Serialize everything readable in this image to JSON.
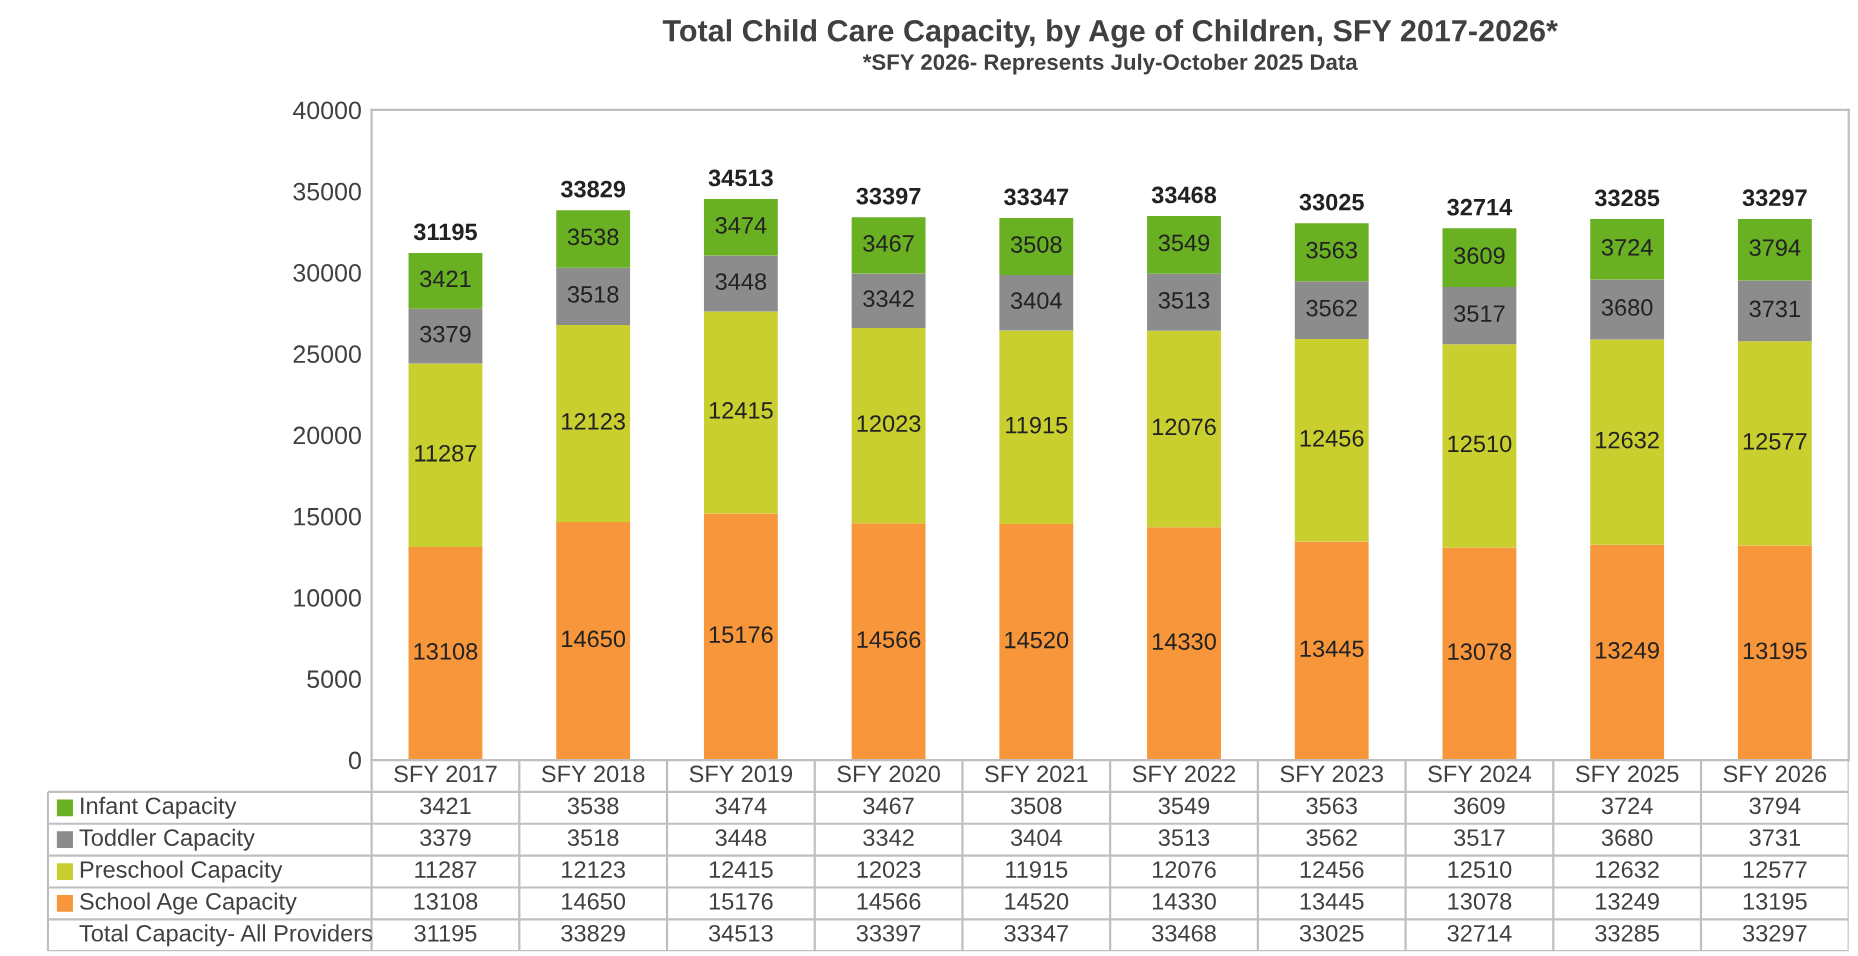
{
  "chart_data": {
    "type": "bar",
    "title": "Total Child Care Capacity, by Age of Children, SFY 2017-2026*",
    "subtitle": "*SFY 2026- Represents July-October 2025 Data",
    "categories": [
      "SFY 2017",
      "SFY 2018",
      "SFY 2019",
      "SFY 2020",
      "SFY 2021",
      "SFY 2022",
      "SFY 2023",
      "SFY 2024",
      "SFY 2025",
      "SFY 2026"
    ],
    "stacked": true,
    "data_labels": true,
    "legend": "bottom",
    "grid": false,
    "ylim": [
      0,
      40000
    ],
    "yticks": [
      0,
      5000,
      10000,
      15000,
      20000,
      25000,
      30000,
      35000,
      40000
    ],
    "series": [
      {
        "name": "School Age Capacity",
        "color": "#f7963a",
        "values": [
          13108,
          14650,
          15176,
          14566,
          14520,
          14330,
          13445,
          13078,
          13249,
          13195
        ],
        "value_labels": [
          "13108",
          "14650",
          "15176",
          "14566",
          "14520",
          "14330",
          "13445",
          "13078",
          "13249",
          "13195"
        ]
      },
      {
        "name": "Preschool Capacity",
        "color": "#c9cf2f",
        "values": [
          11287,
          12123,
          12415,
          12023,
          11915,
          12076,
          12456,
          12510,
          12632,
          12577
        ],
        "value_labels": [
          "11287",
          "12123",
          "12415",
          "12023",
          "11915",
          "12076",
          "12456",
          "12510",
          "12632",
          "12577"
        ]
      },
      {
        "name": "Toddler Capacity",
        "color": "#8c8c8c",
        "values": [
          3379,
          3518,
          3448,
          3342,
          3404,
          3513,
          3562,
          3517,
          3680,
          3731
        ],
        "value_labels": [
          "3379",
          "3518",
          "3448",
          "3342",
          "3404",
          "3513",
          "3562",
          "3517",
          "3680",
          "3731"
        ]
      },
      {
        "name": "Infant Capacity",
        "color": "#6ab023",
        "values": [
          3421,
          3538,
          3474,
          3467,
          3508,
          3549,
          3563,
          3609,
          3724,
          3794
        ],
        "value_labels": [
          "3421",
          "3538",
          "3474",
          "3467",
          "3508",
          "3549",
          "3563",
          "3609",
          "3724",
          "3794"
        ]
      }
    ],
    "totals": [
      "31195",
      "33829",
      "34513",
      "33397",
      "33347",
      "33468",
      "33025",
      "32714",
      "33285",
      "33297"
    ],
    "annotations": [
      "Total Capacity- All Providers",
      "3421",
      "3538",
      "3474",
      "3467",
      "3508",
      "3549",
      "3563",
      "3609",
      "3724",
      "3794",
      "3379",
      "3518",
      "3448",
      "3342",
      "3404",
      "3513",
      "3562",
      "3517",
      "3680",
      "3731",
      "11287",
      "12123",
      "12415",
      "12023",
      "11915",
      "12076",
      "12456",
      "12510",
      "12632",
      "12577",
      "13108",
      "14650",
      "15176",
      "14566",
      "14520",
      "14330",
      "13445",
      "13078",
      "13249",
      "13195"
    ]
  }
}
